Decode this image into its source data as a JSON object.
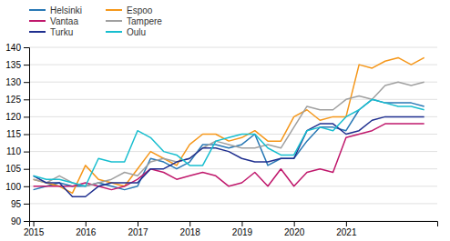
{
  "chart_data": {
    "type": "line",
    "x": [
      2015.0,
      2015.25,
      2015.5,
      2015.75,
      2016.0,
      2016.25,
      2016.5,
      2016.75,
      2017.0,
      2017.25,
      2017.5,
      2017.75,
      2018.0,
      2018.25,
      2018.5,
      2018.75,
      2019.0,
      2019.25,
      2019.5,
      2019.75,
      2020.0,
      2020.25,
      2020.5,
      2020.75,
      2021.0,
      2021.25,
      2021.5,
      2021.75,
      2022.0,
      2022.25,
      2022.5
    ],
    "series": [
      {
        "name": "Helsinki",
        "color": "#2878b5",
        "values": [
          99,
          100,
          101,
          100,
          100,
          101,
          100,
          99,
          100,
          108,
          107,
          105,
          107,
          112,
          112,
          111,
          112,
          115,
          106,
          108,
          108,
          113,
          117,
          117,
          116,
          122,
          125,
          124,
          124,
          124,
          123
        ]
      },
      {
        "name": "Espoo",
        "color": "#f5971a",
        "values": [
          102,
          101,
          100,
          98,
          106,
          102,
          101,
          100,
          105,
          110,
          108,
          106,
          112,
          115,
          115,
          113,
          114,
          116,
          113,
          113,
          120,
          122,
          119,
          120,
          120,
          135,
          134,
          136,
          137,
          135,
          137
        ]
      },
      {
        "name": "Vantaa",
        "color": "#c0186c",
        "values": [
          100,
          100,
          100,
          100,
          101,
          100,
          99,
          100,
          102,
          105,
          104,
          102,
          103,
          104,
          103,
          100,
          101,
          104,
          100,
          105,
          100,
          104,
          105,
          104,
          114,
          115,
          116,
          118,
          118,
          118,
          118
        ]
      },
      {
        "name": "Tampere",
        "color": "#a0a0a0",
        "values": [
          102,
          101,
          103,
          101,
          100,
          101,
          102,
          104,
          103,
          107,
          108,
          107,
          108,
          111,
          113,
          112,
          111,
          111,
          112,
          111,
          117,
          123,
          122,
          122,
          125,
          126,
          125,
          129,
          130,
          129,
          130
        ]
      },
      {
        "name": "Turku",
        "color": "#1f2f8f",
        "values": [
          103,
          101,
          101,
          97,
          97,
          100,
          101,
          101,
          101,
          105,
          105,
          107,
          108,
          111,
          111,
          110,
          108,
          107,
          107,
          108,
          108,
          116,
          118,
          118,
          115,
          116,
          119,
          120,
          120,
          120,
          120
        ]
      },
      {
        "name": "Oulu",
        "color": "#17becf",
        "values": [
          103,
          102,
          102,
          101,
          100,
          108,
          107,
          107,
          116,
          114,
          110,
          109,
          106,
          106,
          113,
          114,
          115,
          115,
          111,
          109,
          109,
          116,
          117,
          116,
          120,
          122,
          125,
          124,
          123,
          123,
          122
        ]
      }
    ],
    "xlim": [
      2014.92,
      2022.75
    ],
    "xticks": [
      2015,
      2016,
      2017,
      2018,
      2019,
      2020,
      2021
    ],
    "ylim": [
      90,
      140
    ],
    "yticks": [
      90,
      95,
      100,
      105,
      110,
      115,
      120,
      125,
      130,
      135,
      140
    ],
    "grid": true,
    "legend": "top-left"
  }
}
